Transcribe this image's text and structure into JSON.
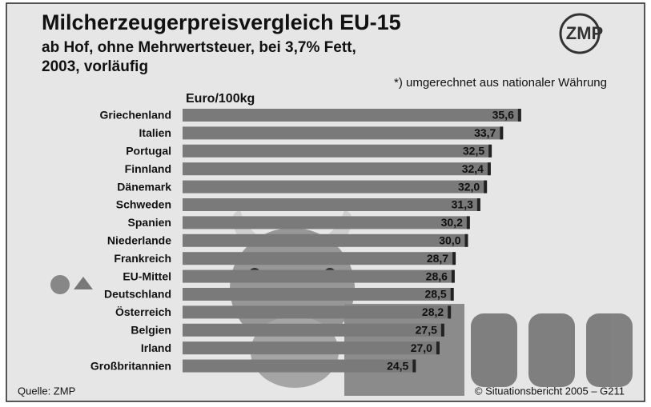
{
  "chart_data": {
    "type": "bar",
    "orientation": "horizontal",
    "title": "Milcherzeugerpreisvergleich EU-15",
    "subtitle": [
      "ab Hof, ohne Mehrwertsteuer, bei 3,7% Fett,",
      "2003, vorläufig"
    ],
    "note": "*) umgerechnet aus nationaler Währung",
    "unit_label": "Euro/100kg",
    "logo": "ZMP",
    "source": "Quelle: ZMP",
    "credit": "© Situationsbericht 2005 – G211",
    "color": "#7a7a7a",
    "categories": [
      "Griechenland",
      "Italien",
      "Portugal",
      "Finnland",
      "Dänemark",
      "Schweden",
      "Spanien",
      "Niederlande",
      "Frankreich",
      "EU-Mittel",
      "Deutschland",
      "Österreich",
      "Belgien",
      "Irland",
      "Großbritannien"
    ],
    "values": [
      35.6,
      33.7,
      32.5,
      32.4,
      32.0,
      31.3,
      30.2,
      30.0,
      28.7,
      28.6,
      28.5,
      28.2,
      27.5,
      27.0,
      24.5
    ],
    "value_labels": [
      "35,6",
      "33,7",
      "32,5",
      "32,4",
      "32,0",
      "31,3",
      "30,2",
      "30,0",
      "28,7",
      "28,6",
      "28,5",
      "28,2",
      "27,5",
      "27,0",
      "24,5"
    ]
  }
}
